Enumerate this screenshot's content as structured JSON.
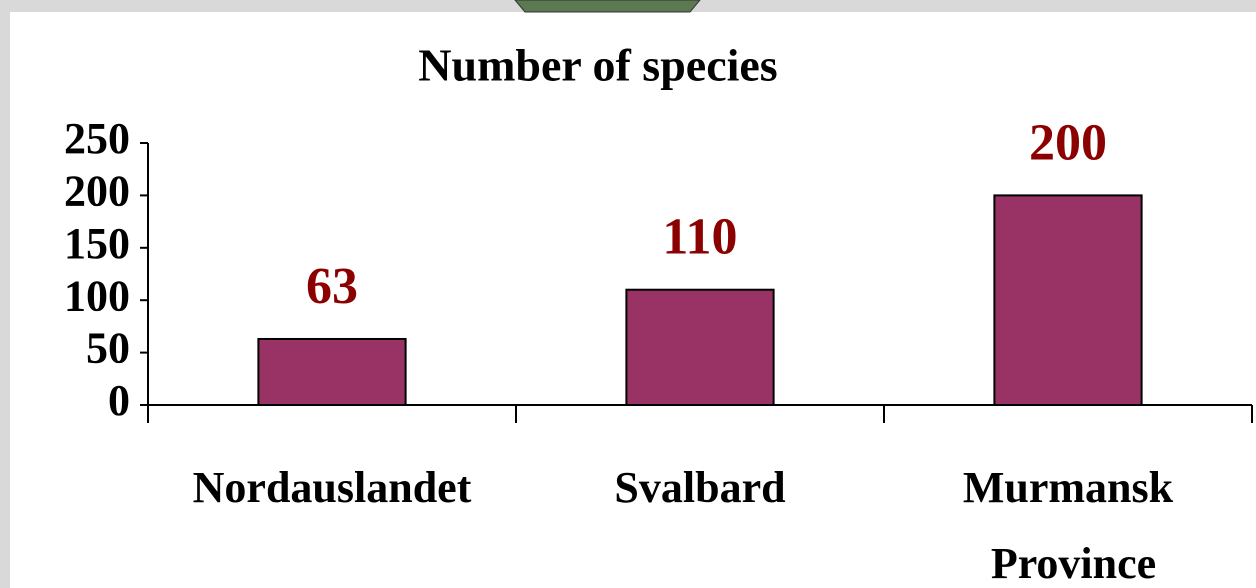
{
  "chart_data": {
    "type": "bar",
    "title": "Number of species",
    "categories": [
      "Nordauslandet",
      "Svalbard",
      "Murmansk Province"
    ],
    "values": [
      63,
      110,
      200
    ],
    "color": "#993366",
    "label_color": "#8b0000",
    "ylim": [
      0,
      250
    ],
    "yticks": [
      0,
      50,
      100,
      150,
      200,
      250
    ]
  }
}
